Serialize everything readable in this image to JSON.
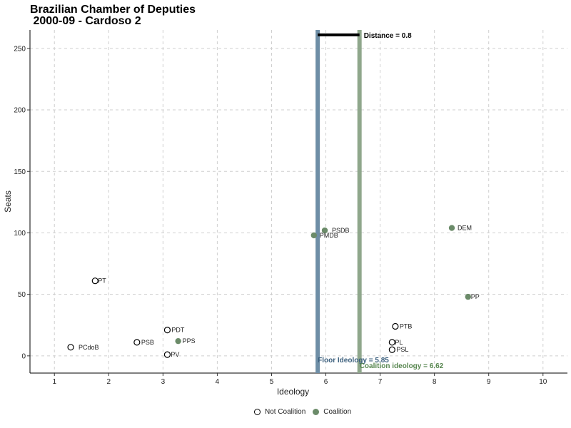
{
  "chart_data": {
    "type": "scatter",
    "title_line1": "Brazilian Chamber of Deputies",
    "title_line2": " 2000-09 - Cardoso 2",
    "xlabel": "Ideology",
    "ylabel": "Seats",
    "xlim": [
      0.55,
      10.45
    ],
    "ylim": [
      -14,
      265
    ],
    "xticks": [
      "1",
      "2",
      "3",
      "4",
      "5",
      "6",
      "7",
      "8",
      "9",
      "10"
    ],
    "yticks": [
      "0",
      "50",
      "100",
      "150",
      "200",
      "250"
    ],
    "grid": true,
    "legend_position": "bottom",
    "legend": [
      {
        "label": "Not Coalition",
        "type": "not"
      },
      {
        "label": "Coalition",
        "type": "coal"
      }
    ],
    "colors": {
      "coalition": "#6b8b69",
      "not_coalition": "#ffffff",
      "floor_line": "#6e8ea6",
      "coalition_line": "#8fa78c",
      "floor_label": "#3b5f7d",
      "coalition_label": "#57864f",
      "grid": "#cfcfcf"
    },
    "points": [
      {
        "party": "PCdoB",
        "x": 1.3,
        "y": 7,
        "coalition": false
      },
      {
        "party": "PT",
        "x": 1.75,
        "y": 61,
        "coalition": false
      },
      {
        "party": "PSB",
        "x": 2.52,
        "y": 11,
        "coalition": false
      },
      {
        "party": "PDT",
        "x": 3.08,
        "y": 21,
        "coalition": false
      },
      {
        "party": "PPS",
        "x": 3.28,
        "y": 12,
        "coalition": true
      },
      {
        "party": "PV",
        "x": 3.08,
        "y": 1,
        "coalition": false
      },
      {
        "party": "PMDB",
        "x": 5.78,
        "y": 98,
        "coalition": true
      },
      {
        "party": "PSDB",
        "x": 5.98,
        "y": 102,
        "coalition": true
      },
      {
        "party": "PTB",
        "x": 7.28,
        "y": 24,
        "coalition": false
      },
      {
        "party": "PL",
        "x": 7.22,
        "y": 11,
        "coalition": false
      },
      {
        "party": "PSL",
        "x": 7.22,
        "y": 5,
        "coalition": false
      },
      {
        "party": "DEM",
        "x": 8.32,
        "y": 104,
        "coalition": true
      },
      {
        "party": "PP",
        "x": 8.62,
        "y": 48,
        "coalition": true
      }
    ],
    "floor_ideology": {
      "value": 5.85,
      "label": "Floor Ideology = 5.85"
    },
    "coalition_ideology": {
      "value": 6.62,
      "label": "Coalition ideology = 6.62"
    },
    "distance": {
      "value": 0.8,
      "y": 261,
      "label": "Distance = 0.8"
    }
  }
}
